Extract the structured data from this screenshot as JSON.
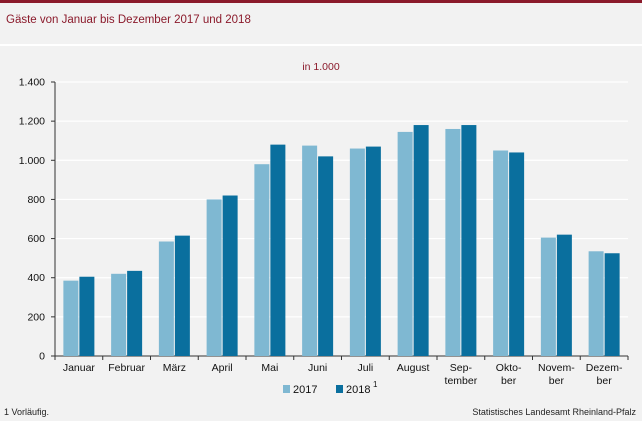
{
  "page": {
    "title": "Gäste von Januar bis Dezember 2017 und 2018",
    "footnote": "1 Vorläufig.",
    "source": "Statistisches Landesamt Rheinland-Pfalz"
  },
  "colors": {
    "title": "#8b1a2b",
    "series_2017": "#7fb8d2",
    "series_2018": "#0a6f9e",
    "background": "#f2f2f2",
    "gridline": "#ffffff"
  },
  "chart_data": {
    "type": "bar",
    "unit_label": "in 1.000",
    "categories": [
      [
        "Januar"
      ],
      [
        "Februar"
      ],
      [
        "März"
      ],
      [
        "April"
      ],
      [
        "Mai"
      ],
      [
        "Juni"
      ],
      [
        "Juli"
      ],
      [
        "August"
      ],
      [
        "Sep-",
        "tember"
      ],
      [
        "Okto-",
        "ber"
      ],
      [
        "Novem-",
        "ber"
      ],
      [
        "Dezem-",
        "ber"
      ]
    ],
    "series": [
      {
        "name": "2017",
        "values": [
          385,
          420,
          585,
          800,
          980,
          1075,
          1060,
          1145,
          1160,
          1050,
          605,
          535
        ]
      },
      {
        "name": "2018",
        "superscript": "1",
        "values": [
          405,
          435,
          615,
          820,
          1080,
          1020,
          1070,
          1180,
          1180,
          1040,
          620,
          525
        ]
      }
    ],
    "ylim": [
      0,
      1400
    ],
    "yticks": [
      0,
      200,
      400,
      600,
      800,
      1000,
      1200,
      1400
    ],
    "ytick_labels": [
      "0",
      "200",
      "400",
      "600",
      "800",
      "1.000",
      "1.200",
      "1.400"
    ],
    "grid": true,
    "legend_position": "bottom-center"
  }
}
